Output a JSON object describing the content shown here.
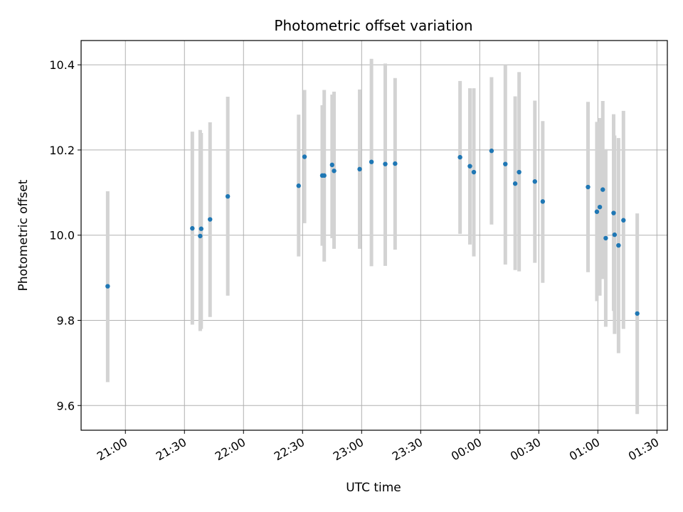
{
  "chart_data": {
    "type": "scatter",
    "title": "Photometric offset variation",
    "xlabel": "UTC time",
    "ylabel": "Photometric offset",
    "x_ticks": [
      "21:00",
      "21:30",
      "22:00",
      "22:30",
      "23:00",
      "23:30",
      "00:00",
      "00:30",
      "01:00",
      "01:30"
    ],
    "x_tick_minutes": [
      1260,
      1290,
      1320,
      1350,
      1380,
      1410,
      1440,
      1470,
      1500,
      1530
    ],
    "xlim_minutes": [
      1237.5,
      1535.3
    ],
    "y_ticks": [
      "9.6",
      "9.8",
      "10.0",
      "10.2",
      "10.4"
    ],
    "y_tick_values": [
      9.6,
      9.8,
      10.0,
      10.2,
      10.4
    ],
    "ylim": [
      9.542,
      10.457
    ],
    "grid": true,
    "marker_color": "#1f77b4",
    "errorbar_color": "#d3d3d3",
    "points": [
      {
        "time": "20:51",
        "y": 9.88,
        "ylow": 9.655,
        "yhigh": 10.103
      },
      {
        "time": "21:34",
        "y": 10.016,
        "ylow": 9.79,
        "yhigh": 10.243
      },
      {
        "time": "21:38",
        "y": 9.998,
        "ylow": 9.775,
        "yhigh": 10.247
      },
      {
        "time": "21:38.5",
        "y": 10.015,
        "ylow": 9.78,
        "yhigh": 10.24
      },
      {
        "time": "21:43",
        "y": 10.037,
        "ylow": 9.808,
        "yhigh": 10.265
      },
      {
        "time": "21:52",
        "y": 10.091,
        "ylow": 9.858,
        "yhigh": 10.325
      },
      {
        "time": "22:28",
        "y": 10.116,
        "ylow": 9.95,
        "yhigh": 10.283
      },
      {
        "time": "22:31",
        "y": 10.184,
        "ylow": 10.028,
        "yhigh": 10.341
      },
      {
        "time": "22:40",
        "y": 10.14,
        "ylow": 9.975,
        "yhigh": 10.305
      },
      {
        "time": "22:41",
        "y": 10.14,
        "ylow": 9.938,
        "yhigh": 10.341
      },
      {
        "time": "22:45",
        "y": 10.165,
        "ylow": 9.993,
        "yhigh": 10.33
      },
      {
        "time": "22:46",
        "y": 10.151,
        "ylow": 9.968,
        "yhigh": 10.337
      },
      {
        "time": "22:59",
        "y": 10.155,
        "ylow": 9.968,
        "yhigh": 10.342
      },
      {
        "time": "23:05",
        "y": 10.172,
        "ylow": 9.927,
        "yhigh": 10.414
      },
      {
        "time": "23:12",
        "y": 10.167,
        "ylow": 9.928,
        "yhigh": 10.403
      },
      {
        "time": "23:17",
        "y": 10.168,
        "ylow": 9.966,
        "yhigh": 10.369
      },
      {
        "time": "23:50",
        "y": 10.183,
        "ylow": 10.003,
        "yhigh": 10.362
      },
      {
        "time": "23:55",
        "y": 10.162,
        "ylow": 9.978,
        "yhigh": 10.345
      },
      {
        "time": "23:57",
        "y": 10.148,
        "ylow": 9.95,
        "yhigh": 10.345
      },
      {
        "time": "00:06",
        "y": 10.198,
        "ylow": 10.025,
        "yhigh": 10.371
      },
      {
        "time": "00:13",
        "y": 10.167,
        "ylow": 9.931,
        "yhigh": 10.4
      },
      {
        "time": "00:18",
        "y": 10.121,
        "ylow": 9.918,
        "yhigh": 10.326
      },
      {
        "time": "00:20",
        "y": 10.148,
        "ylow": 9.915,
        "yhigh": 10.383
      },
      {
        "time": "00:28",
        "y": 10.126,
        "ylow": 9.935,
        "yhigh": 10.316
      },
      {
        "time": "00:32",
        "y": 10.079,
        "ylow": 9.888,
        "yhigh": 10.268
      },
      {
        "time": "00:55",
        "y": 10.113,
        "ylow": 9.913,
        "yhigh": 10.313
      },
      {
        "time": "00:59.5",
        "y": 10.055,
        "ylow": 9.845,
        "yhigh": 10.266
      },
      {
        "time": "01:01",
        "y": 10.066,
        "ylow": 9.858,
        "yhigh": 10.275
      },
      {
        "time": "01:02.5",
        "y": 10.107,
        "ylow": 9.897,
        "yhigh": 10.315
      },
      {
        "time": "01:04",
        "y": 9.993,
        "ylow": 9.785,
        "yhigh": 10.202
      },
      {
        "time": "01:08",
        "y": 10.052,
        "ylow": 9.822,
        "yhigh": 10.284
      },
      {
        "time": "01:08.5",
        "y": 10.001,
        "ylow": 9.768,
        "yhigh": 10.234
      },
      {
        "time": "01:10.5",
        "y": 9.976,
        "ylow": 9.723,
        "yhigh": 10.228
      },
      {
        "time": "01:13",
        "y": 10.035,
        "ylow": 9.78,
        "yhigh": 10.292
      },
      {
        "time": "01:20",
        "y": 9.816,
        "ylow": 9.58,
        "yhigh": 10.051
      }
    ]
  }
}
